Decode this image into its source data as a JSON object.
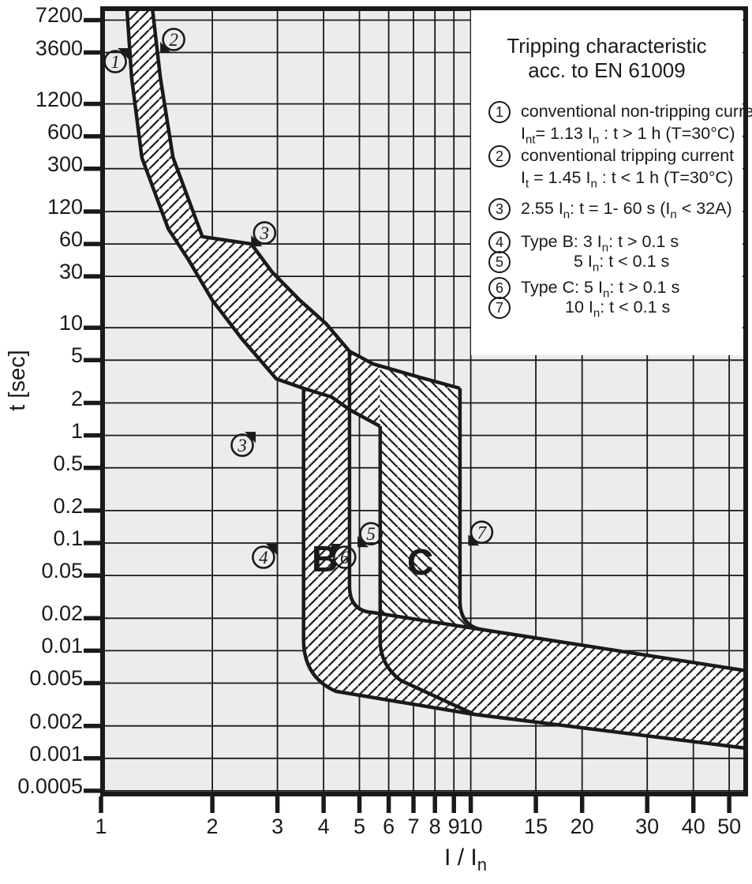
{
  "colors": {
    "ink": "#1a1a1a",
    "plot_bg": "#ececec",
    "band_fill": "#ffffff",
    "page_bg": "#ffffff"
  },
  "y_axis": {
    "title": "t [sec]",
    "ticks": [
      "7200",
      "3600",
      "1200",
      "600",
      "300",
      "120",
      "60",
      "30",
      "10",
      "5",
      "2",
      "1",
      "0.5",
      "0.2",
      "0.1",
      "0.05",
      "0.02",
      "0.01",
      "0.005",
      "0.002",
      "0.001",
      "0.0005"
    ]
  },
  "x_axis": {
    "title_main": "I / I",
    "title_sub": "n",
    "ticks": [
      "1",
      "2",
      "3",
      "4",
      "5",
      "6",
      "7",
      "8",
      "9",
      "10",
      "15",
      "20",
      "30",
      "40",
      "50"
    ]
  },
  "legend": {
    "title_line1": "Tripping characteristic",
    "title_line2": "acc. to EN 61009",
    "items": [
      {
        "num": "1",
        "rows": [
          [
            {
              "t": "conventional non-tripping current"
            }
          ],
          [
            {
              "t": "I"
            },
            {
              "s": "nt"
            },
            {
              "t": "= 1.13 I"
            },
            {
              "s": "n"
            },
            {
              "t": " : t > 1 h   (T=30°C)"
            }
          ]
        ]
      },
      {
        "num": "2",
        "rows": [
          [
            {
              "t": "conventional tripping current"
            }
          ],
          [
            {
              "t": "I"
            },
            {
              "s": "t"
            },
            {
              "t": " = 1.45 I"
            },
            {
              "s": "n"
            },
            {
              "t": " : t < 1 h   (T=30°C)"
            }
          ]
        ]
      },
      {
        "num": "3",
        "rows": [
          [
            {
              "t": "2.55 I"
            },
            {
              "s": "n"
            },
            {
              "t": ": t = 1- 60 s (I"
            },
            {
              "s": "n"
            },
            {
              "t": " < 32A)"
            }
          ]
        ]
      },
      {
        "num": "4",
        "rows": [
          [
            {
              "t": "Type B: 3 I"
            },
            {
              "s": "n"
            },
            {
              "t": ": t > 0.1 s"
            }
          ]
        ]
      },
      {
        "num": "5",
        "rows": [
          [
            {
              "t": "5 I"
            },
            {
              "s": "n"
            },
            {
              "t": ": t < 0.1 s"
            }
          ]
        ]
      },
      {
        "num": "6",
        "rows": [
          [
            {
              "t": "Type C: 5 I"
            },
            {
              "s": "n"
            },
            {
              "t": ": t > 0.1 s"
            }
          ]
        ]
      },
      {
        "num": "7",
        "rows": [
          [
            {
              "t": "10 I"
            },
            {
              "s": "n"
            },
            {
              "t": ": t < 0.1 s"
            }
          ]
        ]
      }
    ]
  },
  "chart_data": {
    "type": "area",
    "title": "Tripping characteristic acc. to EN 61009",
    "xlabel": "I / In",
    "ylabel": "t [sec]",
    "x_scale": {
      "type": "log",
      "domain": [
        1,
        55.9
      ]
    },
    "y_scale": {
      "type": "log",
      "domain": [
        0.00045,
        9400
      ]
    },
    "x_ticks": [
      1,
      2,
      3,
      4,
      5,
      6,
      7,
      8,
      9,
      10,
      15,
      20,
      30,
      40,
      50
    ],
    "y_ticks": [
      7200,
      3600,
      1200,
      600,
      300,
      120,
      60,
      30,
      10,
      5,
      2,
      1,
      0.5,
      0.2,
      0.1,
      0.05,
      0.02,
      0.01,
      0.005,
      0.002,
      0.001,
      0.0005
    ],
    "key_currents": {
      "non_tripping": 1.13,
      "tripping": 1.45,
      "test": 2.55,
      "B_hold": 3,
      "B_trip": 5,
      "C_hold": 5,
      "C_trip": 10
    },
    "series": {
      "thermal_lower": [
        [
          1.175,
          9400
        ],
        [
          1.21,
          2100
        ],
        [
          1.29,
          380
        ],
        [
          1.52,
          83
        ],
        [
          1.73,
          42
        ],
        [
          2.0,
          18
        ],
        [
          2.41,
          7.8
        ],
        [
          2.98,
          3.35
        ],
        [
          3.53,
          2.735
        ],
        [
          4.2,
          2.27
        ],
        [
          4.74,
          1.705
        ],
        [
          5.68,
          1.216
        ]
      ],
      "thermal_upper": [
        [
          1.376,
          9400
        ],
        [
          1.447,
          2100
        ],
        [
          1.566,
          380
        ],
        [
          1.88,
          70
        ],
        [
          2.55,
          60
        ],
        [
          2.9,
          33
        ],
        [
          3.45,
          18
        ],
        [
          4.06,
          10.9
        ],
        [
          4.7,
          6.04
        ],
        [
          5.45,
          4.6
        ],
        [
          7.2,
          3.5
        ],
        [
          9.35,
          2.735
        ]
      ]
    },
    "regions": [
      {
        "name": "thermal-B-and-bottom-band",
        "hatch": "fwd",
        "segments": [
          {
            "m": [
              1.175,
              9400
            ]
          },
          {
            "l": [
              [
                1.21,
                2100
              ],
              [
                1.29,
                380
              ],
              [
                1.52,
                83
              ],
              [
                1.73,
                42
              ],
              [
                2.0,
                18
              ],
              [
                2.41,
                7.8
              ],
              [
                2.98,
                3.35
              ],
              [
                3.53,
                2.735
              ]
            ]
          },
          {
            "l": [
              [
                3.53,
                0.01276
              ]
            ]
          },
          {
            "q": [
              [
                3.53,
                0.00567
              ],
              [
                4.32,
                0.00419
              ]
            ]
          },
          {
            "l": [
              [
                10.15,
                0.00257
              ],
              [
                55.9,
                0.00124
              ],
              [
                55.9,
                0.00649
              ],
              [
                10.8,
                0.01563
              ],
              [
                5.42,
                0.02265
              ]
            ]
          },
          {
            "q": [
              [
                4.7,
                0.0233
              ],
              [
                4.7,
                0.0402
              ]
            ]
          },
          {
            "l": [
              [
                4.7,
                1.705
              ],
              [
                5.68,
                1.216
              ],
              [
                5.68,
                4.39
              ],
              [
                4.7,
                6.04
              ],
              [
                4.06,
                10.9
              ],
              [
                3.45,
                18
              ],
              [
                2.9,
                33
              ],
              [
                2.55,
                60
              ],
              [
                1.88,
                70
              ],
              [
                1.566,
                380
              ],
              [
                1.447,
                2100
              ],
              [
                1.376,
                9400
              ]
            ]
          },
          {
            "z": true
          }
        ]
      },
      {
        "name": "C-band",
        "hatch": "back",
        "segments": [
          {
            "m": [
              5.68,
              4.39
            ]
          },
          {
            "l": [
              [
                7.2,
                3.5
              ],
              [
                9.35,
                2.735
              ],
              [
                9.35,
                0.0292
              ]
            ]
          },
          {
            "q": [
              [
                9.35,
                0.0167
              ],
              [
                10.8,
                0.01563
              ]
            ]
          },
          {
            "l": [
              [
                5.69,
                0.0226
              ],
              [
                5.68,
                4.39
              ]
            ]
          },
          {
            "z": true
          }
        ]
      }
    ],
    "outlines": [
      {
        "name": "curve-non-tripping",
        "segments": [
          {
            "m": [
              1.175,
              9400
            ]
          },
          {
            "l": [
              [
                1.21,
                2100
              ],
              [
                1.29,
                380
              ],
              [
                1.52,
                83
              ],
              [
                1.73,
                42
              ],
              [
                2.0,
                18
              ],
              [
                2.41,
                7.8
              ],
              [
                2.98,
                3.35
              ],
              [
                3.53,
                2.735
              ],
              [
                4.2,
                2.27
              ],
              [
                4.74,
                1.705
              ],
              [
                5.68,
                1.216
              ]
            ]
          }
        ]
      },
      {
        "name": "curve-tripping",
        "segments": [
          {
            "m": [
              1.376,
              9400
            ]
          },
          {
            "l": [
              [
                1.447,
                2100
              ],
              [
                1.566,
                380
              ],
              [
                1.88,
                70
              ],
              [
                2.55,
                60
              ],
              [
                2.9,
                33
              ],
              [
                3.45,
                18
              ],
              [
                4.06,
                10.9
              ],
              [
                4.7,
                6.04
              ],
              [
                5.45,
                4.6
              ],
              [
                7.2,
                3.5
              ],
              [
                9.35,
                2.735
              ]
            ]
          }
        ]
      },
      {
        "name": "B-left-and-bottom",
        "segments": [
          {
            "m": [
              3.53,
              2.735
            ]
          },
          {
            "l": [
              [
                3.53,
                0.01276
              ]
            ]
          },
          {
            "q": [
              [
                3.53,
                0.00567
              ],
              [
                4.32,
                0.00419
              ]
            ]
          },
          {
            "l": [
              [
                10.15,
                0.00257
              ],
              [
                55.9,
                0.00124
              ]
            ]
          }
        ]
      },
      {
        "name": "B-right-and-top",
        "segments": [
          {
            "m": [
              4.7,
              6.04
            ]
          },
          {
            "l": [
              [
                4.7,
                0.0402
              ]
            ]
          },
          {
            "q": [
              [
                4.7,
                0.0233
              ],
              [
                5.42,
                0.02265
              ]
            ]
          },
          {
            "l": [
              [
                10.8,
                0.01563
              ],
              [
                55.9,
                0.00649
              ]
            ]
          }
        ]
      },
      {
        "name": "C-left",
        "segments": [
          {
            "m": [
              5.69,
              1.216
            ]
          },
          {
            "l": [
              [
                5.69,
                0.0124
              ]
            ]
          },
          {
            "q": [
              [
                5.69,
                0.00743
              ],
              [
                6.46,
                0.0053
              ]
            ]
          },
          {
            "l": [
              [
                10.15,
                0.00259
              ]
            ]
          }
        ]
      },
      {
        "name": "C-right",
        "segments": [
          {
            "m": [
              9.35,
              2.735
            ]
          },
          {
            "l": [
              [
                9.35,
                0.0292
              ]
            ]
          },
          {
            "q": [
              [
                9.35,
                0.0167
              ],
              [
                10.8,
                0.01563
              ]
            ]
          }
        ]
      }
    ],
    "markers": [
      {
        "label": "1",
        "v": 1.093,
        "t": 2965,
        "arrow": "tr"
      },
      {
        "label": "2",
        "v": 1.572,
        "t": 4760,
        "arrow": "bl"
      },
      {
        "label": "3",
        "v": 2.77,
        "t": 76,
        "arrow": "bl"
      },
      {
        "label": "3",
        "v": 2.41,
        "t": 0.81,
        "arrow": "tr"
      },
      {
        "label": "4",
        "v": 2.75,
        "t": 0.0738,
        "arrow": "tr"
      },
      {
        "label": "5",
        "v": 5.37,
        "t": 0.122,
        "arrow": "bl"
      },
      {
        "label": "6",
        "v": 4.56,
        "t": 0.0738,
        "arrow": "tl"
      },
      {
        "label": "7",
        "v": 10.7,
        "t": 0.126,
        "arrow": "bl"
      }
    ],
    "region_labels": [
      {
        "text": "B",
        "v": 4.03,
        "t": 0.0714
      },
      {
        "text": "C",
        "v": 7.3,
        "t": 0.0666
      }
    ]
  }
}
